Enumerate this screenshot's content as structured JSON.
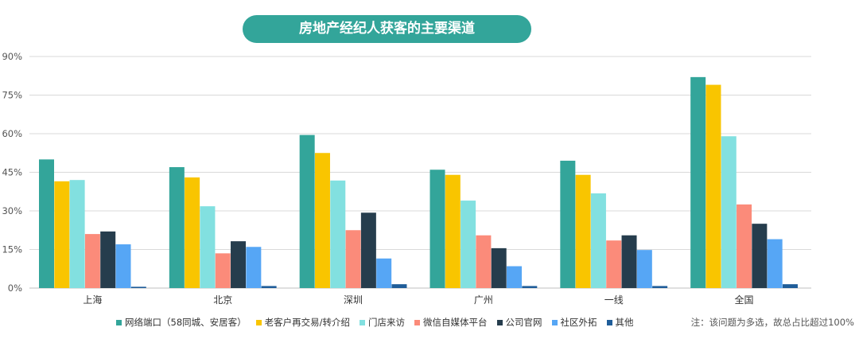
{
  "chart_data": {
    "type": "bar",
    "title": "房地产经纪人获客的主要渠道",
    "categories": [
      "上海",
      "北京",
      "深圳",
      "广州",
      "一线",
      "全国"
    ],
    "series": [
      {
        "name": "网络端口（58同城、安居客）",
        "color": "#33a59a",
        "values": [
          50,
          47,
          59.5,
          46,
          49.5,
          82
        ]
      },
      {
        "name": "老客户再交易/转介绍",
        "color": "#f9c500",
        "values": [
          41.5,
          43,
          52.5,
          44,
          44,
          79
        ]
      },
      {
        "name": "门店来访",
        "color": "#82e0e0",
        "values": [
          42,
          31.8,
          41.8,
          34,
          36.8,
          59
        ]
      },
      {
        "name": "微信自媒体平台",
        "color": "#fb8b7a",
        "values": [
          21,
          13.5,
          22.5,
          20.5,
          18.5,
          32.5
        ]
      },
      {
        "name": "公司官网",
        "color": "#263d4d",
        "values": [
          22,
          18.2,
          29.3,
          15.5,
          20.5,
          25
        ]
      },
      {
        "name": "社区外拓",
        "color": "#56a6f5",
        "values": [
          17,
          16,
          11.5,
          8.5,
          14.8,
          19
        ]
      },
      {
        "name": "其他",
        "color": "#1f5d99",
        "values": [
          0.5,
          0.8,
          1.5,
          0.8,
          0.8,
          1.5
        ]
      }
    ],
    "y_ticks": [
      "0%",
      "15%",
      "30%",
      "45%",
      "60%",
      "75%",
      "90%"
    ],
    "ylim": [
      0,
      90
    ],
    "grid": true,
    "legend_position": "bottom",
    "note": "注：该问题为多选，故总占比超过100%"
  }
}
